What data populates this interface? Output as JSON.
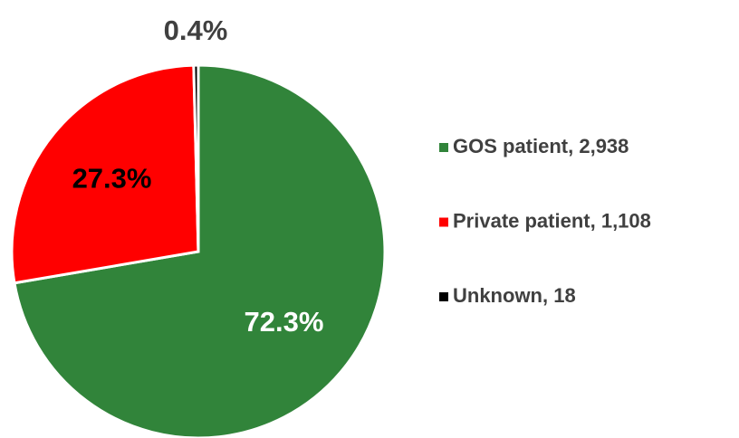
{
  "chart_data": {
    "type": "pie",
    "categories": [
      "GOS patient, 2,938",
      "Private patient, 1,108",
      "Unknown, 18"
    ],
    "values": [
      72.3,
      27.3,
      0.4
    ],
    "value_labels": [
      "72.3%",
      "27.3%",
      "0.4%"
    ],
    "colors": [
      "#31843a",
      "#ff0000",
      "#000000"
    ],
    "label_colors": [
      "#ffffff",
      "#000000",
      "#404040"
    ],
    "legend": "right"
  }
}
